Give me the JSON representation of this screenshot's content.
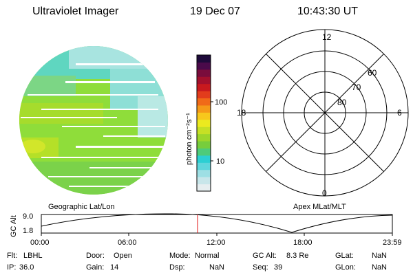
{
  "header": {
    "title": "Ultraviolet Imager",
    "date": "19 Dec 07",
    "time": "10:43:30 UT"
  },
  "colorbar": {
    "unit_label": "photon cm⁻²s⁻¹",
    "ticks": [
      "100",
      "10"
    ],
    "colors": [
      "#e6eef0",
      "#c8e6ea",
      "#9edfe4",
      "#5fd6dc",
      "#2ccfd3",
      "#4ecb7a",
      "#77cd3c",
      "#9dd62b",
      "#c6e025",
      "#ecea1f",
      "#f7c81c",
      "#f59a18",
      "#f06a18",
      "#e23c1c",
      "#c8191e",
      "#a3102d",
      "#7a0c3c",
      "#4a0a4a",
      "#1e0a3a"
    ]
  },
  "left_panel": {
    "label": "Geographic Lat/Lon"
  },
  "right_panel": {
    "label": "Apex MLat/MLT",
    "mlt_labels": [
      "12",
      "18",
      "6",
      "0"
    ],
    "mlat_labels": [
      "60",
      "70",
      "80"
    ]
  },
  "timeline": {
    "y_label": "GC Alt",
    "y_ticks": [
      "9.0",
      "1.8"
    ],
    "x_ticks": [
      "00:00",
      "06:00",
      "12:00",
      "18:00",
      "23:59"
    ],
    "marker_time": "10:43:30"
  },
  "footer": {
    "row1": [
      {
        "label": "Flt:",
        "value": "LBHL"
      },
      {
        "label": "Door:",
        "value": "Open"
      },
      {
        "label": "Mode:",
        "value": "Normal"
      },
      {
        "label": "GC Alt:",
        "value": "8.3 Re"
      },
      {
        "label": "GLat:",
        "value": "NaN"
      }
    ],
    "row2": [
      {
        "label": "IP:",
        "value": "36.0"
      },
      {
        "label": "Gain:",
        "value": "14"
      },
      {
        "label": "Dsp:",
        "value": "NaN"
      },
      {
        "label": "Seq:",
        "value": "39"
      },
      {
        "label": "GLon:",
        "value": "NaN"
      }
    ]
  }
}
